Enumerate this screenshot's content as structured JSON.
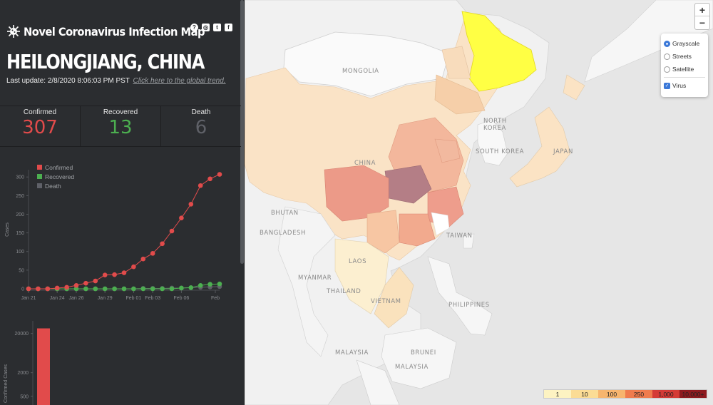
{
  "app": {
    "title": "Novel Coronavirus Infection Map",
    "region": "HEILONGJIANG, CHINA",
    "last_update": "Last update: 2/8/2020 8:06:03 PM PST",
    "global_link": "Click here to the global trend."
  },
  "social_icons": [
    "help-icon",
    "instagram-icon",
    "twitter-icon",
    "facebook-icon"
  ],
  "stats": {
    "confirmed": {
      "label": "Confirmed",
      "value": "307",
      "color": "#e14b4b"
    },
    "recovered": {
      "label": "Recovered",
      "value": "13",
      "color": "#4caf50"
    },
    "death": {
      "label": "Death",
      "value": "6",
      "color": "#5f6168"
    }
  },
  "chart_data": [
    {
      "type": "line",
      "ylabel": "Cases",
      "ylim": [
        0,
        310
      ],
      "yticks": [
        0,
        50,
        100,
        150,
        200,
        250,
        300
      ],
      "xticks": [
        "Jan 21",
        "Jan 24",
        "Jan 26",
        "Jan 29",
        "Feb 01",
        "Feb 03",
        "Feb 06",
        "Feb"
      ],
      "legend": [
        "Confirmed",
        "Recovered",
        "Death"
      ],
      "legend_position": "top-left",
      "series": [
        {
          "name": "Confirmed",
          "color": "#e14b4b",
          "values": [
            0,
            0,
            0,
            2,
            4,
            9,
            15,
            21,
            37,
            38,
            43,
            59,
            80,
            95,
            121,
            155,
            190,
            227,
            277,
            295,
            307
          ]
        },
        {
          "name": "Recovered",
          "color": "#4caf50",
          "values": [
            0,
            0,
            0,
            0,
            0,
            0,
            0,
            0,
            0,
            0,
            0,
            0,
            0,
            0,
            0,
            0,
            2,
            3,
            9,
            12,
            13
          ]
        },
        {
          "name": "Death",
          "color": "#5f6168",
          "values": [
            0,
            0,
            0,
            0,
            0,
            0,
            0,
            0,
            0,
            0,
            0,
            0,
            1,
            1,
            1,
            2,
            2,
            3,
            4,
            5,
            6
          ]
        }
      ]
    },
    {
      "type": "bar",
      "ylabel": "Confirmed Cases",
      "yticks": [
        500,
        2000,
        20000
      ],
      "log_scale": true,
      "categories": [
        ""
      ],
      "values": [
        27000
      ],
      "color": "#e14b4b"
    }
  ],
  "map": {
    "labels": [
      "MONGOLIA",
      "CHINA",
      "NORTH KOREA",
      "SOUTH KOREA",
      "JAPAN",
      "BHUTAN",
      "BANGLADESH",
      "MYANMAR",
      "LAOS",
      "THAILAND",
      "VIETNAM",
      "TAIWAN",
      "PHILIPPINES",
      "MALAYSIA",
      "BRUNEI",
      "MALAYSIA"
    ],
    "zoom_in": "+",
    "zoom_out": "−",
    "layers": {
      "grayscale": "Grayscale",
      "streets": "Streets",
      "satellite": "Satellite",
      "virus": "Virus"
    },
    "scale": [
      {
        "label": "1",
        "color": "#fdf3c2"
      },
      {
        "label": "10",
        "color": "#fbdc95"
      },
      {
        "label": "100",
        "color": "#f7b56e"
      },
      {
        "label": "250",
        "color": "#ef7b4d"
      },
      {
        "label": "1,000",
        "color": "#d43b36"
      },
      {
        "label": "10,000+",
        "color": "#8e1a1f"
      }
    ]
  }
}
